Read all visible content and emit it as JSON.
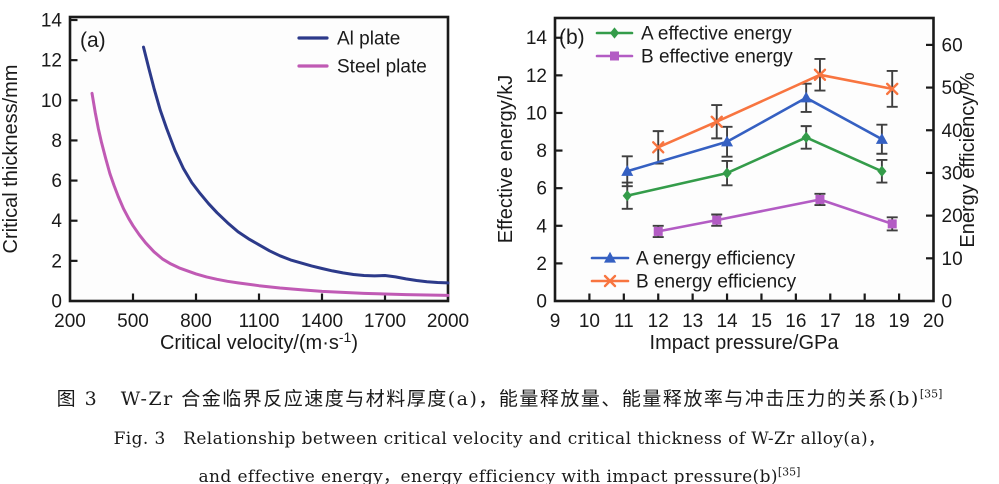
{
  "figure": {
    "caption": {
      "line1_cn": "图 3   W-Zr 合金临界反应速度与材料厚度(a)，能量释放量、能量释放率与冲击压力的关系(b)",
      "line1_ref": "[35]",
      "line2_en": "Fig. 3   Relationship between critical velocity and critical thickness of W-Zr alloy(a)，",
      "line3_en": "and effective energy，energy efficiency with impact pressure(b)",
      "line3_ref": "[35]"
    }
  },
  "colors": {
    "axis": "#1a1a1a",
    "error_bar": "#3f3f3f",
    "plot_background": "#fdfdfd",
    "al_plate": "#2c3a8a",
    "steel_plate": "#c05ab4",
    "a_effective_energy": "#349c4a",
    "b_effective_energy": "#b35cc4",
    "a_energy_efficiency": "#3560c2",
    "b_energy_efficiency": "#f87540"
  },
  "chart_data": [
    {
      "id": "panel-a",
      "type": "line",
      "panel_label": "(a)",
      "xlabel": {
        "pre": "Critical velocity/(m·s",
        "sup": "-1",
        "post": ")"
      },
      "ylabel": "Critical thickness/mm",
      "xlim": [
        200,
        2000
      ],
      "xticks": [
        200,
        500,
        800,
        1100,
        1400,
        1700,
        2000
      ],
      "ylim": [
        0,
        14.15
      ],
      "yticks": [
        0,
        2,
        4,
        6,
        8,
        10,
        12,
        14
      ],
      "grid": false,
      "legend_position": "top-right",
      "series": [
        {
          "name": "Al plate",
          "color": "#2c3a8a",
          "x": [
            550,
            575,
            600,
            630,
            660,
            700,
            740,
            780,
            820,
            860,
            900,
            950,
            1000,
            1050,
            1100,
            1150,
            1200,
            1250,
            1300,
            1350,
            1400,
            1450,
            1500,
            1550,
            1600,
            1650,
            1700,
            1750,
            1800,
            1850,
            1900,
            1950,
            2000
          ],
          "y": [
            12.65,
            11.6,
            10.6,
            9.5,
            8.6,
            7.5,
            6.6,
            5.9,
            5.35,
            4.85,
            4.4,
            3.9,
            3.45,
            3.1,
            2.8,
            2.5,
            2.25,
            2.05,
            1.9,
            1.75,
            1.62,
            1.5,
            1.4,
            1.32,
            1.27,
            1.25,
            1.27,
            1.2,
            1.1,
            1.02,
            0.96,
            0.92,
            0.9
          ]
        },
        {
          "name": "Steel plate",
          "color": "#c05ab4",
          "x": [
            305,
            320,
            335,
            350,
            370,
            390,
            410,
            430,
            455,
            480,
            500,
            530,
            560,
            600,
            640,
            680,
            720,
            760,
            800,
            850,
            900,
            950,
            1000,
            1100,
            1200,
            1300,
            1400,
            1500,
            1600,
            1700,
            1800,
            1900,
            2000
          ],
          "y": [
            10.35,
            9.4,
            8.6,
            7.9,
            7.1,
            6.35,
            5.75,
            5.2,
            4.6,
            4.1,
            3.75,
            3.3,
            2.9,
            2.45,
            2.1,
            1.85,
            1.65,
            1.5,
            1.35,
            1.2,
            1.08,
            0.98,
            0.9,
            0.76,
            0.65,
            0.56,
            0.48,
            0.43,
            0.38,
            0.35,
            0.32,
            0.3,
            0.28
          ]
        }
      ]
    },
    {
      "id": "panel-b",
      "type": "line",
      "panel_label": "(b)",
      "xlabel": {
        "pre": "Impact pressure/GPa",
        "sup": "",
        "post": ""
      },
      "ylabel_left": "Effective energy/kJ",
      "ylabel_right": "Energy efficiency/%",
      "xlim": [
        9,
        20
      ],
      "xticks": [
        9,
        10,
        11,
        12,
        13,
        14,
        15,
        16,
        17,
        18,
        19,
        20
      ],
      "ylim_left": [
        0,
        15.05
      ],
      "yticks_left": [
        0,
        2,
        4,
        6,
        8,
        10,
        12,
        14
      ],
      "ylim_right": [
        0,
        66.3
      ],
      "yticks_right": [
        0,
        10,
        20,
        30,
        40,
        50,
        60
      ],
      "grid": false,
      "series": [
        {
          "name": "A effective energy",
          "axis": "left",
          "marker": "diamond",
          "color": "#349c4a",
          "x": [
            11.1,
            14.0,
            16.3,
            18.5
          ],
          "y": [
            5.6,
            6.8,
            8.7,
            6.9
          ],
          "yerr": [
            0.7,
            0.65,
            0.6,
            0.6
          ]
        },
        {
          "name": "B effective energy",
          "axis": "left",
          "marker": "square",
          "color": "#b35cc4",
          "x": [
            12.0,
            13.7,
            16.7,
            18.8
          ],
          "y": [
            3.7,
            4.3,
            5.4,
            4.1
          ],
          "yerr": [
            0.3,
            0.3,
            0.3,
            0.35
          ]
        },
        {
          "name": "A energy efficiency",
          "axis": "right",
          "marker": "triangle",
          "color": "#3560c2",
          "x": [
            11.1,
            14.0,
            16.3,
            18.5
          ],
          "y": [
            30.4,
            37.3,
            47.6,
            37.9
          ],
          "yerr": [
            3.5,
            3.5,
            3.3,
            3.4
          ]
        },
        {
          "name": "B energy efficiency",
          "axis": "right",
          "marker": "x",
          "color": "#f87540",
          "x": [
            12.0,
            13.7,
            16.7,
            18.8
          ],
          "y": [
            36.0,
            42.0,
            53.0,
            49.7
          ],
          "yerr": [
            3.8,
            3.9,
            3.7,
            4.2
          ]
        }
      ],
      "legend_top": [
        "A effective energy",
        "B effective energy"
      ],
      "legend_bottom": [
        "A energy efficiency",
        "B energy efficiency"
      ]
    }
  ]
}
